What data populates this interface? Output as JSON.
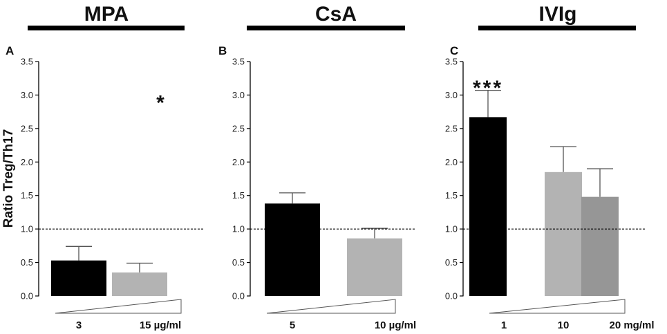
{
  "chart_data": [
    {
      "type": "bar",
      "panel": "A",
      "title": "MPA",
      "ylabel": "Ratio Treg/Th17",
      "ylim": [
        0,
        3.5
      ],
      "yticks": [
        "0.0",
        "0.5",
        "1.0",
        "1.5",
        "2.0",
        "2.5",
        "3.0",
        "3.5"
      ],
      "reference_line": 1.0,
      "categories": [
        "3",
        "15 µg/ml"
      ],
      "values": [
        0.53,
        0.35
      ],
      "errors": [
        0.21,
        0.14
      ],
      "colors": [
        "#000000",
        "#b3b3b3"
      ],
      "significance": [
        {
          "label": "*",
          "value": 3.0
        }
      ]
    },
    {
      "type": "bar",
      "panel": "B",
      "title": "CsA",
      "ylim": [
        0,
        3.5
      ],
      "yticks": [
        "0.0",
        "0.5",
        "1.0",
        "1.5",
        "2.0",
        "2.5",
        "3.0",
        "3.5"
      ],
      "reference_line": 1.0,
      "categories": [
        "5",
        "10 µg/ml"
      ],
      "values": [
        1.38,
        0.86
      ],
      "errors": [
        0.16,
        0.15
      ],
      "colors": [
        "#000000",
        "#b3b3b3"
      ],
      "significance": []
    },
    {
      "type": "bar",
      "panel": "C",
      "title": "IVIg",
      "ylim": [
        0,
        3.5
      ],
      "yticks": [
        "0.0",
        "0.5",
        "1.0",
        "1.5",
        "2.0",
        "2.5",
        "3.0",
        "3.5"
      ],
      "reference_line": 1.0,
      "categories": [
        "1",
        "10",
        "20 mg/ml"
      ],
      "values": [
        2.67,
        1.85,
        1.48
      ],
      "errors": [
        0.4,
        0.38,
        0.42
      ],
      "colors": [
        "#000000",
        "#b3b3b3",
        "#969696"
      ],
      "significance": [
        {
          "label": "***",
          "value": 3.22
        }
      ]
    }
  ]
}
